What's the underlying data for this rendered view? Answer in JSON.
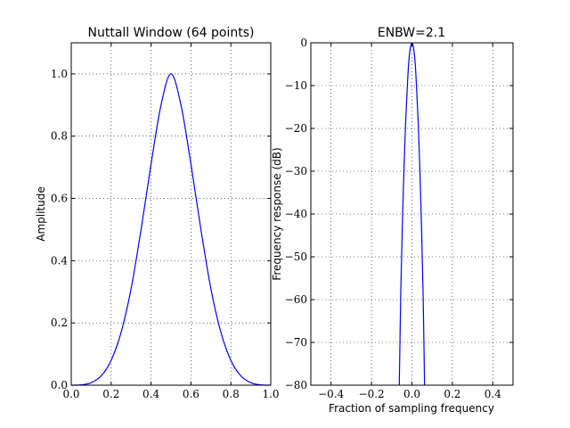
{
  "chart_data": [
    {
      "type": "line",
      "title": "Nuttall Window (64 points)",
      "xlabel": "",
      "ylabel": "Amplitude",
      "xlim": [
        0.0,
        1.0
      ],
      "ylim": [
        0.0,
        1.1
      ],
      "xticks": [
        0.0,
        0.2,
        0.4,
        0.6,
        0.8,
        1.0
      ],
      "xtick_labels": [
        "0.0",
        "0.2",
        "0.4",
        "0.6",
        "0.8",
        "1.0"
      ],
      "yticks": [
        0.0,
        0.2,
        0.4,
        0.6,
        0.8,
        1.0
      ],
      "ytick_labels": [
        "0.0",
        "0.2",
        "0.4",
        "0.6",
        "0.8",
        "1.0"
      ],
      "grid": true,
      "series": [
        {
          "color": "#0000ff",
          "x": [
            0.0,
            0.05,
            0.1,
            0.15,
            0.2,
            0.25,
            0.3,
            0.35,
            0.4,
            0.45,
            0.5,
            0.55,
            0.6,
            0.65,
            0.7,
            0.75,
            0.8,
            0.85,
            0.9,
            0.95,
            1.0
          ],
          "y": [
            0.0,
            0.001,
            0.008,
            0.03,
            0.08,
            0.17,
            0.31,
            0.5,
            0.71,
            0.9,
            1.0,
            0.9,
            0.71,
            0.5,
            0.31,
            0.17,
            0.08,
            0.03,
            0.008,
            0.001,
            0.0
          ]
        }
      ]
    },
    {
      "type": "line",
      "title": "ENBW=2.1",
      "xlabel": "Fraction of sampling frequency",
      "ylabel": "Frequency response (dB)",
      "xlim": [
        -0.5,
        0.5
      ],
      "ylim": [
        -80,
        0
      ],
      "xticks": [
        -0.4,
        -0.2,
        0.0,
        0.2,
        0.4
      ],
      "xtick_labels": [
        "−0.4",
        "−0.2",
        "0.0",
        "0.2",
        "0.4"
      ],
      "yticks": [
        0,
        -10,
        -20,
        -30,
        -40,
        -50,
        -60,
        -70,
        -80
      ],
      "ytick_labels": [
        "0",
        "−10",
        "−20",
        "−30",
        "−40",
        "−50",
        "−60",
        "−70",
        "−80"
      ],
      "grid": true,
      "series": [
        {
          "color": "#0000ff",
          "x": [
            -0.0625,
            -0.055,
            -0.047,
            -0.039,
            -0.031,
            -0.023,
            -0.016,
            -0.008,
            0.0,
            0.008,
            0.016,
            0.023,
            0.031,
            0.039,
            0.047,
            0.055,
            0.0625
          ],
          "y": [
            -80,
            -58,
            -42,
            -29,
            -18.5,
            -10.5,
            -4.7,
            -1.2,
            0.0,
            -1.2,
            -4.7,
            -10.5,
            -18.5,
            -29,
            -42,
            -58,
            -80
          ]
        }
      ]
    }
  ]
}
